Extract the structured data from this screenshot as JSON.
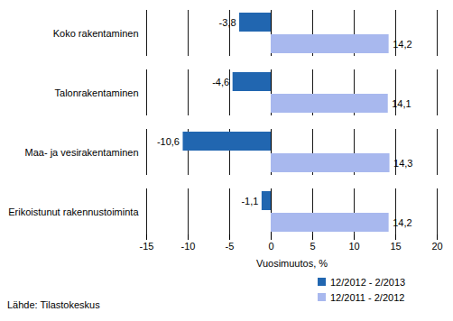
{
  "chart_data": {
    "type": "bar",
    "orientation": "horizontal",
    "categories": [
      "Koko rakentaminen",
      "Talonrakentaminen",
      "Maa- ja vesirakentaminen",
      "Erikoistunut rakennustoiminta"
    ],
    "series": [
      {
        "name": "12/2012 - 2/2013",
        "color": "#2166b0",
        "values": [
          -3.8,
          -4.6,
          -10.6,
          -1.1
        ],
        "value_labels": [
          "-3,8",
          "-4,6",
          "-10,6",
          "-1,1"
        ]
      },
      {
        "name": "12/2011 - 2/2012",
        "color": "#a8b8ee",
        "values": [
          14.2,
          14.1,
          14.3,
          14.2
        ],
        "value_labels": [
          "14,2",
          "14,1",
          "14,3",
          "14,2"
        ]
      }
    ],
    "x_label": "Vuosimuutos, %",
    "xlim": [
      -15,
      20
    ],
    "xticks": [
      -15,
      -10,
      -5,
      0,
      5,
      10,
      15,
      20
    ],
    "grid": true,
    "data_labels": true,
    "legend": "bottom right",
    "source": "Lähde: Tilastokeskus"
  }
}
